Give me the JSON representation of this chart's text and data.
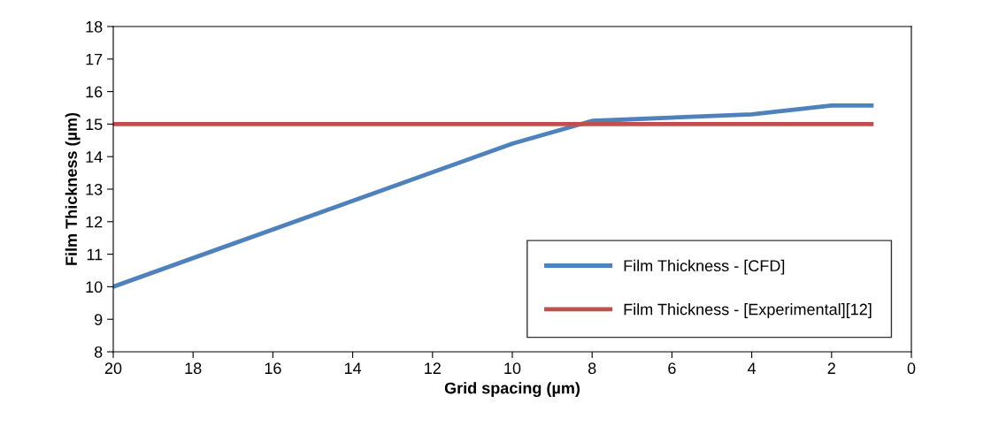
{
  "chart_data": {
    "type": "line",
    "xlabel": "Grid spacing (µm)",
    "ylabel": "Film Thickness (µm)",
    "xlim": [
      20,
      0
    ],
    "xticks": [
      20,
      18,
      16,
      14,
      12,
      10,
      8,
      6,
      4,
      2,
      0
    ],
    "ylim": [
      8,
      18
    ],
    "yticks": [
      8,
      9,
      10,
      11,
      12,
      13,
      14,
      15,
      16,
      17,
      18
    ],
    "grid": false,
    "legend": "bottom right",
    "marker": "none",
    "line_style": "solid",
    "series": [
      {
        "name": "Film Thickness - [CFD]",
        "color": "#4f81bd",
        "x": [
          20,
          10,
          8,
          4,
          2,
          1
        ],
        "values": [
          10,
          14.4,
          15.1,
          15.3,
          15.57,
          15.57
        ]
      },
      {
        "name": "Film Thickness - [Experimental][12]",
        "color": "#c0504d",
        "x": [
          20,
          1
        ],
        "values": [
          15,
          15
        ]
      }
    ]
  }
}
